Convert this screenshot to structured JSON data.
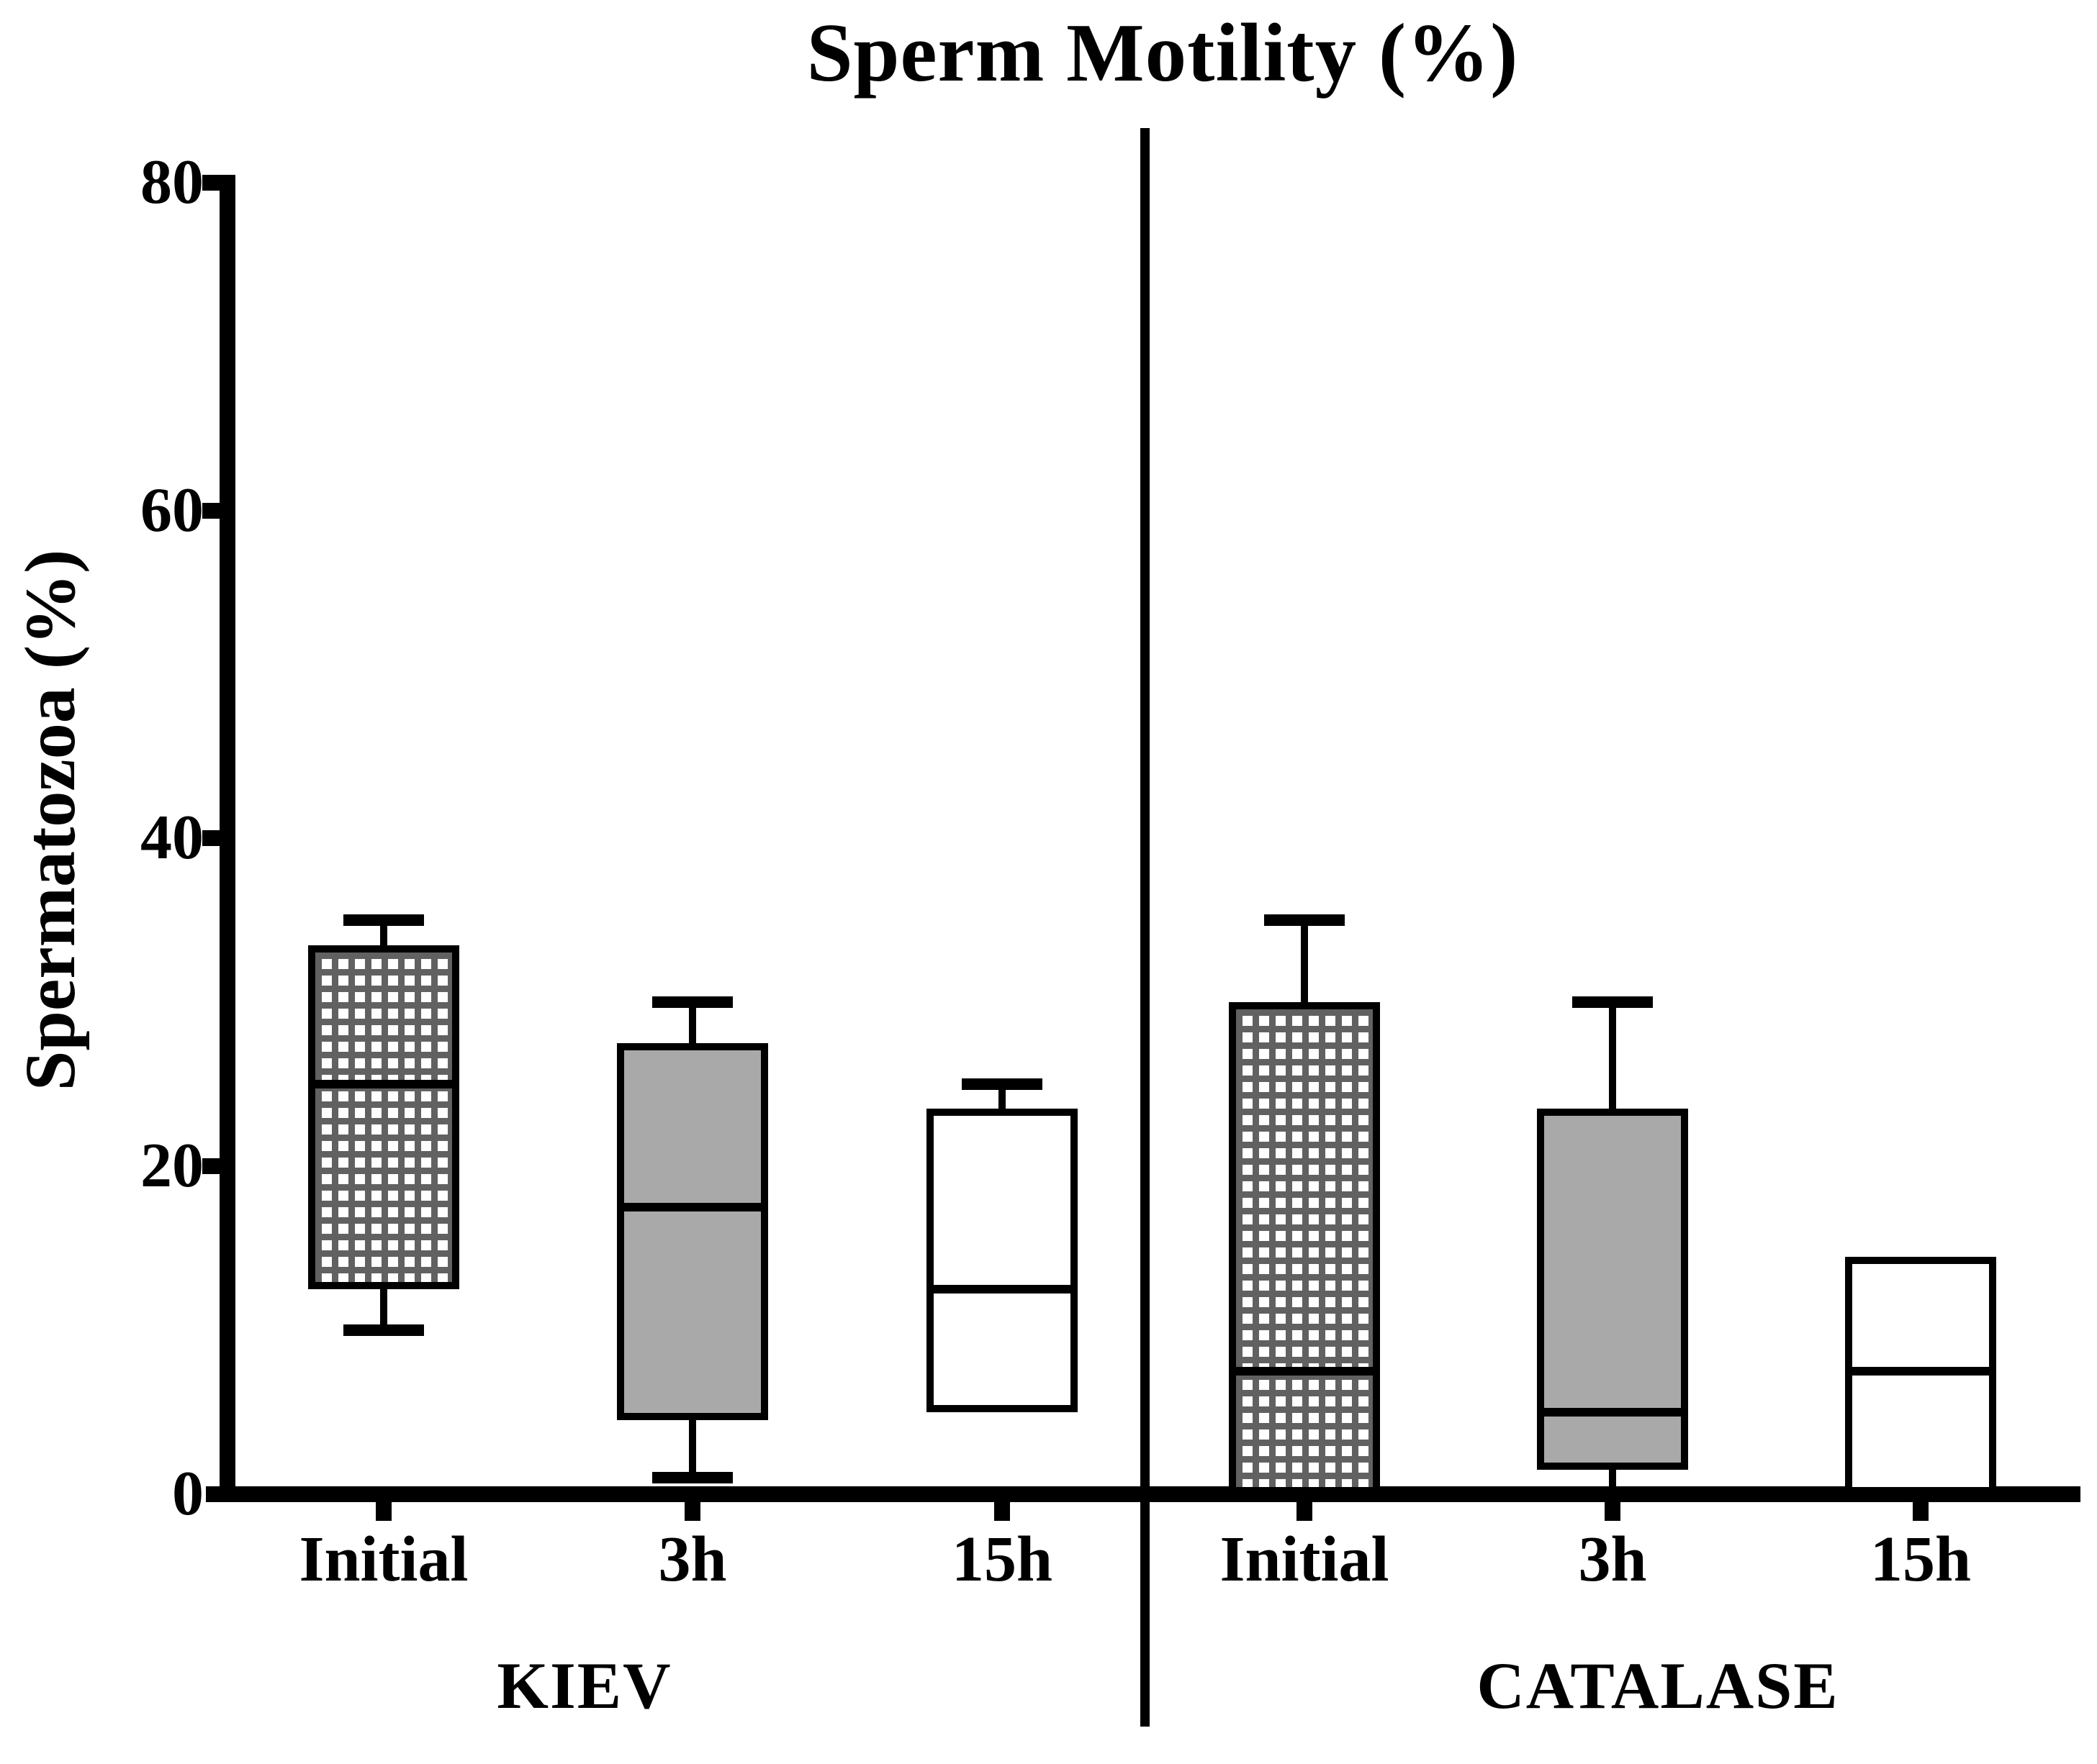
{
  "title": "Sperm Motility (%)",
  "y_axis": {
    "label": "Spermatozoa (%)",
    "tick_labels": [
      "0",
      "20",
      "40",
      "60",
      "80"
    ]
  },
  "x_axis": {
    "category_labels": [
      "Initial",
      "3h",
      "15h",
      "Initial",
      "3h",
      "15h"
    ]
  },
  "group_labels": [
    "KIEV",
    "CATALASE"
  ],
  "chart_data": {
    "type": "boxplot",
    "title": "Sperm Motility (%)",
    "ylabel": "Spermatozoa (%)",
    "xlabel": "",
    "ylim": [
      0,
      80
    ],
    "yticks": [
      0,
      20,
      40,
      60,
      80
    ],
    "grid": false,
    "legend": false,
    "groups": [
      "KIEV",
      "CATALASE"
    ],
    "categories": [
      "Initial",
      "3h",
      "15h"
    ],
    "boxes": [
      {
        "group": "KIEV",
        "category": "Initial",
        "whisker_high": 35,
        "q3": 33.5,
        "median": 25,
        "q1": 12.5,
        "whisker_low": 10,
        "whisker_low_cap": true,
        "fill": "checkered"
      },
      {
        "group": "KIEV",
        "category": "3h",
        "whisker_high": 30,
        "q3": 27.5,
        "median": 17.5,
        "q1": 4.5,
        "whisker_low": 1,
        "whisker_low_cap": true,
        "fill": "gray"
      },
      {
        "group": "KIEV",
        "category": "15h",
        "whisker_high": 25,
        "q3": 23.5,
        "median": 12.5,
        "q1": 5,
        "whisker_low": null,
        "whisker_low_cap": false,
        "fill": "white"
      },
      {
        "group": "CATALASE",
        "category": "Initial",
        "whisker_high": 35,
        "q3": 30,
        "median": 7.5,
        "q1": 0,
        "whisker_low": null,
        "whisker_low_cap": false,
        "fill": "checkered"
      },
      {
        "group": "CATALASE",
        "category": "3h",
        "whisker_high": 30,
        "q3": 23.5,
        "median": 5,
        "q1": 1.5,
        "whisker_low": 0,
        "whisker_low_cap": false,
        "fill": "gray"
      },
      {
        "group": "CATALASE",
        "category": "15h",
        "whisker_high": null,
        "q3": 14.5,
        "median": 7.5,
        "q1": 0,
        "whisker_low": null,
        "whisker_low_cap": false,
        "fill": "white"
      }
    ],
    "colors": {
      "gray_fill": "#a9a9a9",
      "checker_grid": "#616161",
      "line": "#000000",
      "background": "#ffffff"
    }
  }
}
